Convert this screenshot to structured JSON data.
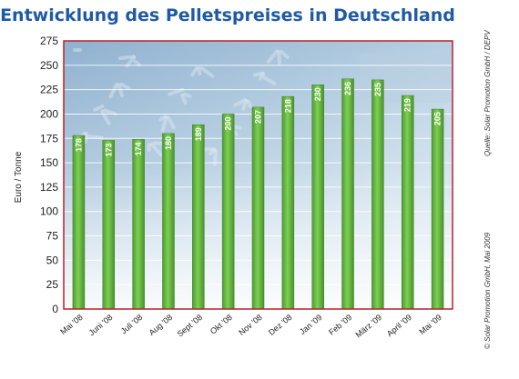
{
  "title": "Entwicklung des Pelletspreises in Deutschland",
  "source_note": "Quelle: Solar Promotion GmbH / DEPV",
  "copyright_note": "© Solar Promotion GmbH, Mai 2009",
  "chart_data": {
    "type": "bar",
    "title": "Entwicklung des Pelletspreises in Deutschland",
    "xlabel": "",
    "ylabel": "Euro / Tonne",
    "ylim": [
      0,
      275
    ],
    "yticks": [
      0,
      25,
      50,
      75,
      100,
      125,
      150,
      175,
      200,
      225,
      250,
      275
    ],
    "grid": true,
    "categories": [
      "Mai '08",
      "Juni '08",
      "Juli '08",
      "Aug '08",
      "Sept '08",
      "Okt '08",
      "Nov '08",
      "Dez '08",
      "Jan '09",
      "Feb '09",
      "März '09",
      "April '09",
      "Mai '09"
    ],
    "values": [
      178,
      173,
      174,
      180,
      189,
      200,
      207,
      218,
      230,
      236,
      235,
      219,
      205
    ],
    "data_labels": [
      "178",
      "173",
      "174",
      "180",
      "189",
      "200",
      "207",
      "218",
      "230",
      "236",
      "235",
      "219",
      "205"
    ],
    "bar_color": "#6cbf4a",
    "frame_color": "#b8212b"
  }
}
